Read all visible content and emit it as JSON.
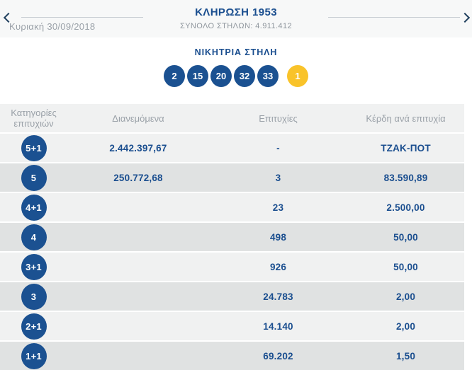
{
  "colors": {
    "navy_text": "#1a4e8f",
    "ball_blue": "#1b5191",
    "joker_yellow": "#f9c32a",
    "row_light": "#f0f1f1",
    "row_dark": "#e0e2e2",
    "muted_text": "#9aa1a8"
  },
  "header": {
    "title": "ΚΛΗΡΩΣΗ 1953",
    "subtitle": "ΣΥΝΟΛΟ ΣΤΗΛΩΝ: 4.911.412",
    "date": "Κυριακή 30/09/2018"
  },
  "winning": {
    "heading": "ΝΙΚΗΤΡΙΑ ΣΤΗΛΗ",
    "numbers": [
      "2",
      "15",
      "20",
      "32",
      "33"
    ],
    "joker": "1"
  },
  "table": {
    "headers": {
      "category_line1": "Κατηγορίες",
      "category_line2": "επιτυχιών",
      "distributed": "Διανεμόμενα",
      "successes": "Επιτυχίες",
      "winnings": "Κέρδη ανά επιτυχία"
    },
    "rows": [
      {
        "category": "5+1",
        "distributed": "2.442.397,67",
        "successes": "-",
        "winnings": "ΤΖΑΚ-ΠΟΤ"
      },
      {
        "category": "5",
        "distributed": "250.772,68",
        "successes": "3",
        "winnings": "83.590,89"
      },
      {
        "category": "4+1",
        "distributed": "",
        "successes": "23",
        "winnings": "2.500,00"
      },
      {
        "category": "4",
        "distributed": "",
        "successes": "498",
        "winnings": "50,00"
      },
      {
        "category": "3+1",
        "distributed": "",
        "successes": "926",
        "winnings": "50,00"
      },
      {
        "category": "3",
        "distributed": "",
        "successes": "24.783",
        "winnings": "2,00"
      },
      {
        "category": "2+1",
        "distributed": "",
        "successes": "14.140",
        "winnings": "2,00"
      },
      {
        "category": "1+1",
        "distributed": "",
        "successes": "69.202",
        "winnings": "1,50"
      }
    ]
  }
}
